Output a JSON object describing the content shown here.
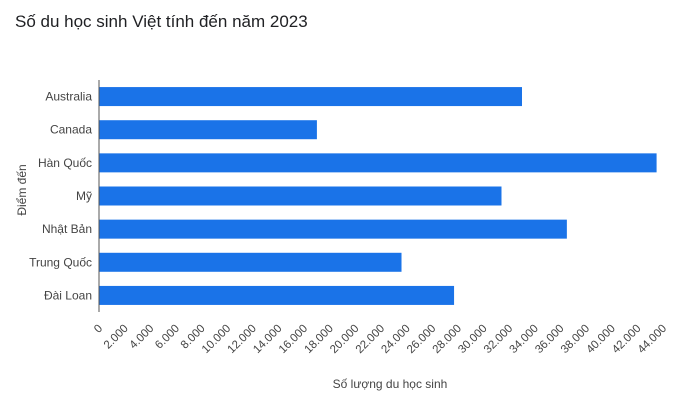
{
  "chart_data": {
    "type": "bar",
    "orientation": "horizontal",
    "title": "Số du học sinh Việt tính đến năm 2023",
    "xlabel": "Số lượng du học sinh",
    "ylabel": "Điểm đến",
    "categories": [
      "Australia",
      "Canada",
      "Hàn Quốc",
      "Mỹ",
      "Nhật Bản",
      "Trung Quốc",
      "Đài Loan"
    ],
    "values": [
      33000,
      17000,
      43500,
      31400,
      36500,
      23600,
      27700
    ],
    "xlim": [
      0,
      44000
    ],
    "xticks": [
      "0",
      "2.000",
      "4.000",
      "6.000",
      "8.000",
      "10.000",
      "12.000",
      "14.000",
      "16.000",
      "18.000",
      "20.000",
      "22.000",
      "24.000",
      "26.000",
      "28.000",
      "30.000",
      "32.000",
      "34.000",
      "36.000",
      "38.000",
      "40.000",
      "42.000",
      "44.000"
    ],
    "bar_color": "#1a73e8",
    "grid": false,
    "legend": "none"
  }
}
